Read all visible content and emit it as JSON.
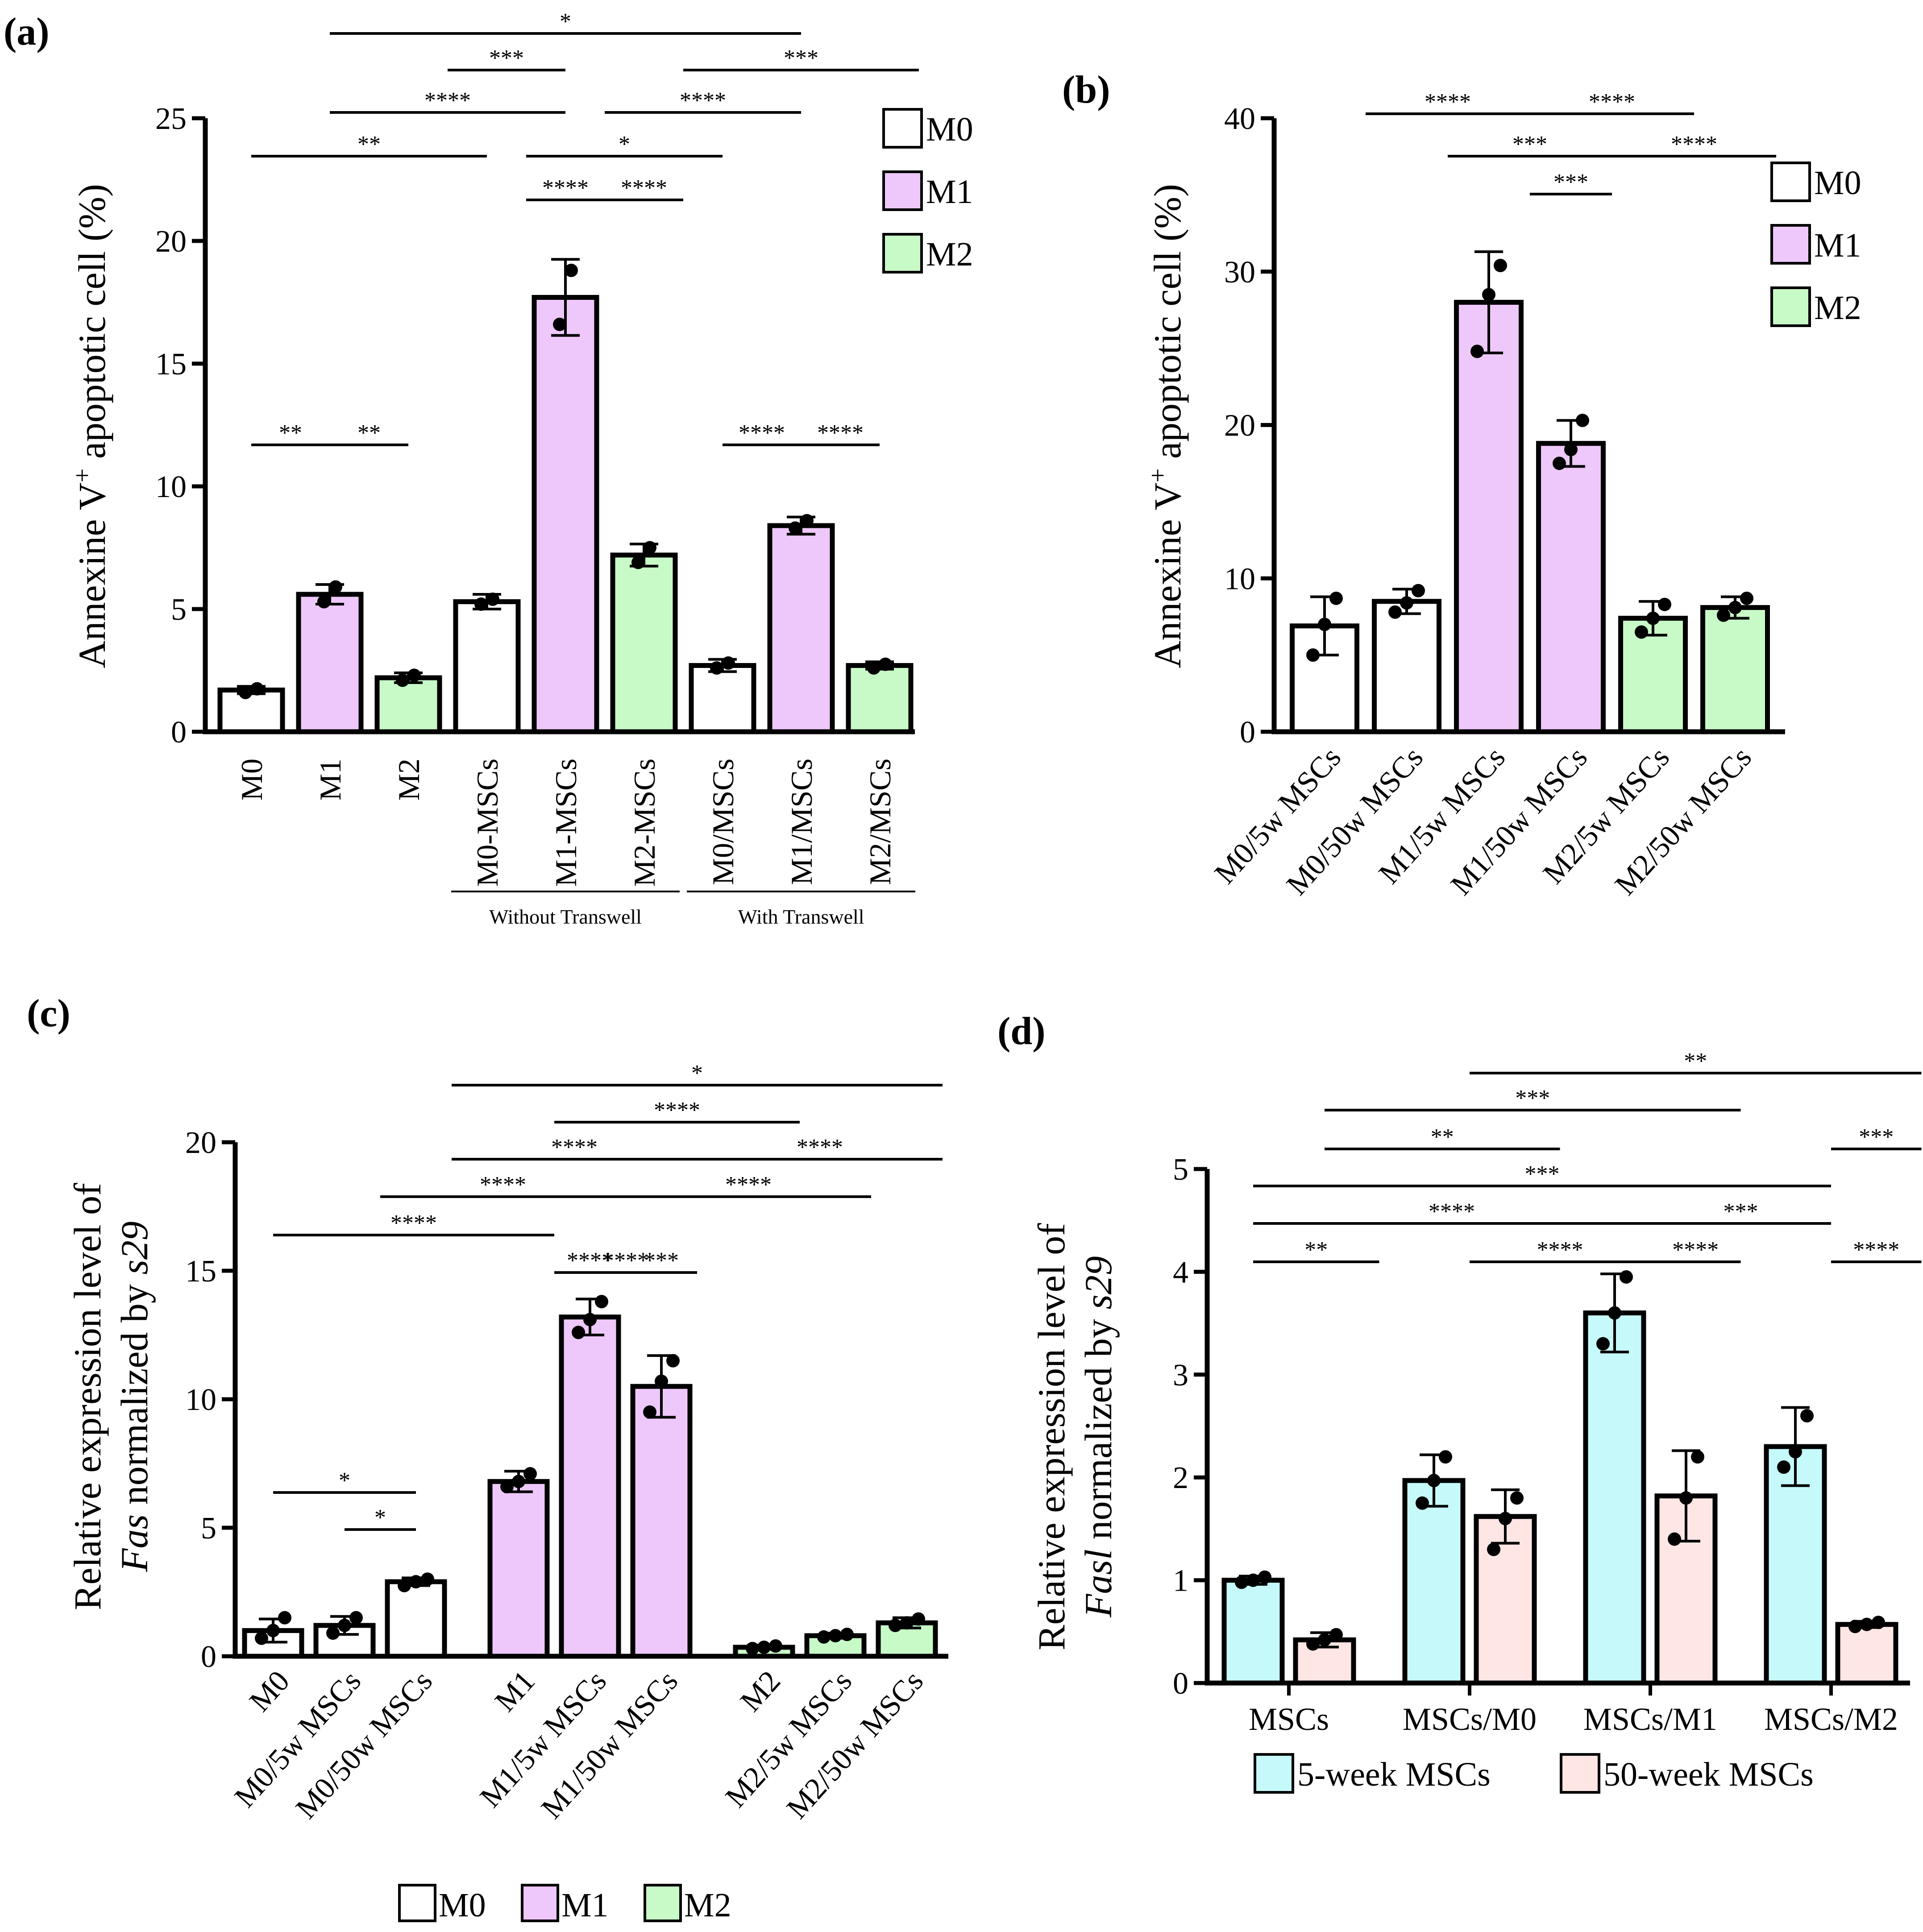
{
  "colors": {
    "M0": "#ffffff",
    "M1": "#eec8fa",
    "M2": "#c8fac8",
    "five_week": "#c6fafa",
    "fifty_week": "#fde6e4",
    "stroke": "#000000"
  },
  "chart_data": [
    {
      "panel": "(a)",
      "type": "bar",
      "ylabel_main": "Annexine V",
      "ylabel_sup": "+",
      "ylabel_tail": " apoptotic cell (%)",
      "ylim": [
        0,
        25
      ],
      "yticks": [
        0,
        5,
        10,
        15,
        20,
        25
      ],
      "categories": [
        "M0",
        "M1",
        "M2",
        "M0-MSCs",
        "M1-MSCs",
        "M2-MSCs",
        "M0/MSCs",
        "M1/MSCs",
        "M2/MSCs"
      ],
      "values": [
        1.7,
        5.6,
        2.2,
        5.3,
        17.7,
        7.2,
        2.7,
        8.4,
        2.7
      ],
      "errors": [
        0.15,
        0.4,
        0.2,
        0.3,
        1.55,
        0.45,
        0.25,
        0.35,
        0.15
      ],
      "groups": [
        "M0",
        "M1",
        "M2",
        "M0",
        "M1",
        "M2",
        "M0",
        "M1",
        "M2"
      ],
      "points": [
        [
          1.6,
          1.75
        ],
        [
          5.3,
          5.9
        ],
        [
          2.1,
          2.3
        ],
        [
          5.2,
          5.4
        ],
        [
          16.6,
          18.8
        ],
        [
          6.9,
          7.5
        ],
        [
          2.6,
          2.8
        ],
        [
          8.3,
          8.6
        ],
        [
          2.6,
          2.75
        ]
      ],
      "subgroups": [
        {
          "label": "Without Transwell",
          "from": 3,
          "to": 5
        },
        {
          "label": "With Transwell",
          "from": 6,
          "to": 8
        }
      ],
      "significance": [
        {
          "from": 1,
          "to": 7,
          "label": "*"
        },
        {
          "from": 2.5,
          "to": 4,
          "label": "***"
        },
        {
          "from": 5.5,
          "to": 8.5,
          "label": "***"
        },
        {
          "from": 1,
          "to": 4,
          "label": "****"
        },
        {
          "from": 4.5,
          "to": 7,
          "label": "****"
        },
        {
          "from": 0,
          "to": 3,
          "label": "**"
        },
        {
          "from": 3.5,
          "to": 6,
          "label": "*"
        },
        {
          "from": 3.5,
          "to": 4.5,
          "label": "****"
        },
        {
          "from": 4.5,
          "to": 5.5,
          "label": "****"
        },
        {
          "from": 0,
          "to": 1,
          "label": "**"
        },
        {
          "from": 1,
          "to": 2,
          "label": "**"
        },
        {
          "from": 6,
          "to": 7,
          "label": "****"
        },
        {
          "from": 7,
          "to": 8,
          "label": "****"
        }
      ],
      "legend": [
        "M0",
        "M1",
        "M2"
      ]
    },
    {
      "panel": "(b)",
      "type": "bar",
      "ylabel_main": "Annexine V",
      "ylabel_sup": "+",
      "ylabel_tail": " apoptotic cell (%)",
      "ylim": [
        0,
        40
      ],
      "yticks": [
        0,
        10,
        20,
        30,
        40
      ],
      "categories": [
        "M0/5w MSCs",
        "M0/50w MSCs",
        "M1/5w MSCs",
        "M1/50w MSCs",
        "M2/5w MSCs",
        "M2/50w MSCs"
      ],
      "values": [
        6.9,
        8.5,
        28.0,
        18.8,
        7.4,
        8.1
      ],
      "errors": [
        1.9,
        0.8,
        3.3,
        1.5,
        1.1,
        0.7
      ],
      "groups": [
        "M0",
        "M0",
        "M1",
        "M1",
        "M2",
        "M2"
      ],
      "points": [
        [
          5.0,
          7.0,
          8.7
        ],
        [
          7.8,
          8.4,
          9.2
        ],
        [
          24.8,
          28.5,
          30.4
        ],
        [
          17.5,
          18.4,
          20.3
        ],
        [
          6.5,
          7.4,
          8.3
        ],
        [
          7.6,
          8.1,
          8.7
        ]
      ],
      "significance": [
        {
          "from": 0.5,
          "to": 2.5,
          "label": "****"
        },
        {
          "from": 2.5,
          "to": 4.5,
          "label": "****"
        },
        {
          "from": 1.5,
          "to": 3.5,
          "label": "***"
        },
        {
          "from": 3.5,
          "to": 5.5,
          "label": "****"
        },
        {
          "from": 2.5,
          "to": 3.5,
          "label": "***"
        }
      ],
      "legend": [
        "M0",
        "M1",
        "M2"
      ]
    },
    {
      "panel": "(c)",
      "type": "bar",
      "ylabel_line1": "Relative expression level of",
      "ylabel_gene": "Fas",
      "ylabel_mid": " normalized by ",
      "ylabel_norm": "s29",
      "ylim": [
        0,
        20
      ],
      "yticks": [
        0,
        5,
        10,
        15,
        20
      ],
      "categories": [
        "M0",
        "M0/5w MSCs",
        "M0/50w MSCs",
        "M1",
        "M1/5w MSCs",
        "M1/50w MSCs",
        "M2",
        "M2/5w MSCs",
        "M2/50w MSCs"
      ],
      "values": [
        1.0,
        1.2,
        2.9,
        6.8,
        13.2,
        10.5,
        0.35,
        0.8,
        1.3
      ],
      "errors": [
        0.45,
        0.35,
        0.15,
        0.4,
        0.7,
        1.2,
        0.08,
        0.1,
        0.2
      ],
      "groups": [
        "M0",
        "M0",
        "M0",
        "M1",
        "M1",
        "M1",
        "M2",
        "M2",
        "M2"
      ],
      "points": [
        [
          0.7,
          1.0,
          1.5
        ],
        [
          0.9,
          1.2,
          1.5
        ],
        [
          2.75,
          2.9,
          3.0
        ],
        [
          6.6,
          6.8,
          7.1
        ],
        [
          12.6,
          13.1,
          13.8
        ],
        [
          9.5,
          10.7,
          11.5
        ],
        [
          0.3,
          0.35,
          0.4
        ],
        [
          0.75,
          0.8,
          0.85
        ],
        [
          1.2,
          1.3,
          1.45
        ]
      ],
      "significance": [
        {
          "from": 2.5,
          "to": 8.5,
          "label": "*"
        },
        {
          "from": 3.5,
          "to": 6.5,
          "label": "****"
        },
        {
          "from": 2.5,
          "to": 5.5,
          "label": "****"
        },
        {
          "from": 5.5,
          "to": 8.5,
          "label": "****"
        },
        {
          "from": 1.5,
          "to": 4.5,
          "label": "****"
        },
        {
          "from": 4.5,
          "to": 7.5,
          "label": "****"
        },
        {
          "from": 0,
          "to": 3.5,
          "label": "****"
        },
        {
          "from": 3.5,
          "to": 5.5,
          "label": "****"
        },
        {
          "from": 3.5,
          "to": 4.5,
          "label": "****"
        },
        {
          "from": 4.5,
          "to": 5.5,
          "label": "***"
        },
        {
          "from": 0,
          "to": 2,
          "label": "*"
        },
        {
          "from": 1,
          "to": 2,
          "label": "*"
        }
      ],
      "legend": [
        "M0",
        "M1",
        "M2"
      ]
    },
    {
      "panel": "(d)",
      "type": "bar",
      "ylabel_line1": "Relative expression level of",
      "ylabel_gene": "Fasl",
      "ylabel_mid": " normalized by ",
      "ylabel_norm": "s29",
      "ylim": [
        0,
        5
      ],
      "yticks": [
        0,
        1,
        2,
        3,
        4,
        5
      ],
      "categories": [
        "MSCs",
        "MSCs/M0",
        "MSCs/M1",
        "MSCs/M2"
      ],
      "series": [
        {
          "name": "5-week MSCs",
          "values": [
            1.0,
            1.97,
            3.6,
            2.3
          ],
          "errors": [
            0.04,
            0.25,
            0.38,
            0.38
          ],
          "points": [
            [
              0.98,
              1.0,
              1.03
            ],
            [
              1.75,
              1.97,
              2.2
            ],
            [
              3.3,
              3.6,
              3.95
            ],
            [
              2.1,
              2.25,
              2.6
            ]
          ]
        },
        {
          "name": "50-week MSCs",
          "values": [
            0.42,
            1.62,
            1.82,
            0.57
          ],
          "errors": [
            0.07,
            0.26,
            0.44,
            0.03
          ],
          "points": [
            [
              0.38,
              0.42,
              0.47
            ],
            [
              1.3,
              1.6,
              1.8
            ],
            [
              1.4,
              1.8,
              2.2
            ],
            [
              0.55,
              0.57,
              0.59
            ]
          ]
        }
      ],
      "significance": [
        {
          "from": 2.5,
          "to": 7.5,
          "label": "**"
        },
        {
          "from": 1,
          "to": 5.5,
          "label": "***"
        },
        {
          "from": 1,
          "to": 3.5,
          "label": "**"
        },
        {
          "from": 6.5,
          "to": 7.5,
          "label": "***"
        },
        {
          "from": 0,
          "to": 6.5,
          "label": "***"
        },
        {
          "from": 0,
          "to": 4.5,
          "label": "****"
        },
        {
          "from": 4.5,
          "to": 6.5,
          "label": "***"
        },
        {
          "from": 0,
          "to": 1.5,
          "label": "**"
        },
        {
          "from": 2.5,
          "to": 4.5,
          "label": "****"
        },
        {
          "from": 4.5,
          "to": 5.5,
          "label": "****"
        },
        {
          "from": 6.5,
          "to": 7.5,
          "label": "****"
        }
      ],
      "legend": [
        "5-week MSCs",
        "50-week MSCs"
      ]
    }
  ]
}
